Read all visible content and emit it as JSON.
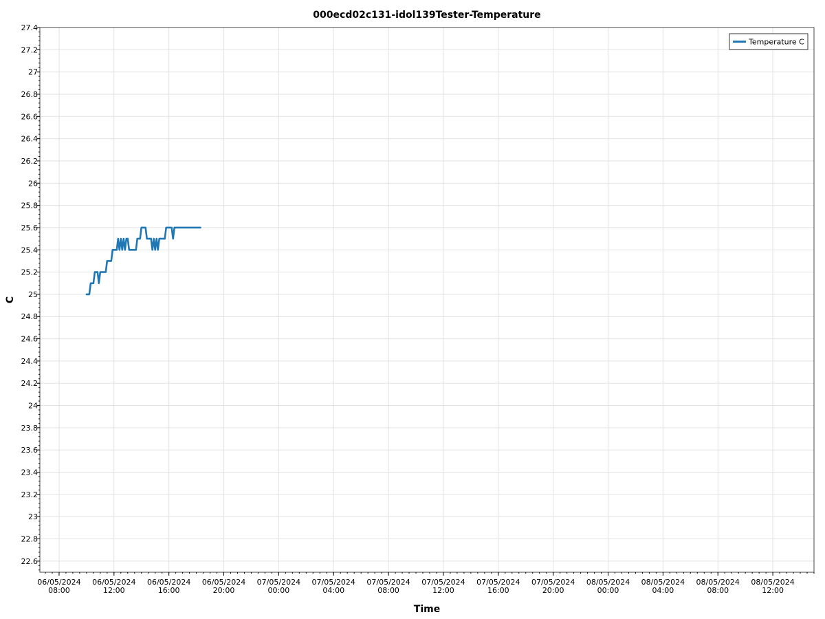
{
  "chart_data": {
    "type": "line",
    "title": "000ecd02c131-idol139Tester-Temperature",
    "xlabel": "Time",
    "ylabel": "C",
    "xlim": [
      "2024-05-06 06:36",
      "2024-05-08 15:00"
    ],
    "ylim": [
      22.5,
      27.4
    ],
    "y_ticks": [
      22.6,
      22.8,
      23,
      23.2,
      23.4,
      23.6,
      23.8,
      24,
      24.2,
      24.4,
      24.6,
      24.8,
      25,
      25.2,
      25.4,
      25.6,
      25.8,
      26,
      26.2,
      26.4,
      26.6,
      26.8,
      27,
      27.2,
      27.4
    ],
    "x_ticks": [
      {
        "date": "06/05/2024",
        "time": "08:00",
        "t": "2024-05-06 08:00"
      },
      {
        "date": "06/05/2024",
        "time": "12:00",
        "t": "2024-05-06 12:00"
      },
      {
        "date": "06/05/2024",
        "time": "16:00",
        "t": "2024-05-06 16:00"
      },
      {
        "date": "06/05/2024",
        "time": "20:00",
        "t": "2024-05-06 20:00"
      },
      {
        "date": "07/05/2024",
        "time": "00:00",
        "t": "2024-05-07 00:00"
      },
      {
        "date": "07/05/2024",
        "time": "04:00",
        "t": "2024-05-07 04:00"
      },
      {
        "date": "07/05/2024",
        "time": "08:00",
        "t": "2024-05-07 08:00"
      },
      {
        "date": "07/05/2024",
        "time": "12:00",
        "t": "2024-05-07 12:00"
      },
      {
        "date": "07/05/2024",
        "time": "16:00",
        "t": "2024-05-07 16:00"
      },
      {
        "date": "07/05/2024",
        "time": "20:00",
        "t": "2024-05-07 20:00"
      },
      {
        "date": "08/05/2024",
        "time": "00:00",
        "t": "2024-05-08 00:00"
      },
      {
        "date": "08/05/2024",
        "time": "04:00",
        "t": "2024-05-08 04:00"
      },
      {
        "date": "08/05/2024",
        "time": "08:00",
        "t": "2024-05-08 08:00"
      },
      {
        "date": "08/05/2024",
        "time": "12:00",
        "t": "2024-05-08 12:00"
      }
    ],
    "grid": true,
    "legend_position": "top-right",
    "series": [
      {
        "name": "Temperature C",
        "color": "#1f77b4",
        "points": [
          [
            "2024-05-06 10:00",
            25.0
          ],
          [
            "2024-05-06 10:12",
            25.0
          ],
          [
            "2024-05-06 10:18",
            25.1
          ],
          [
            "2024-05-06 10:30",
            25.1
          ],
          [
            "2024-05-06 10:36",
            25.2
          ],
          [
            "2024-05-06 10:48",
            25.2
          ],
          [
            "2024-05-06 10:54",
            25.1
          ],
          [
            "2024-05-06 11:00",
            25.2
          ],
          [
            "2024-05-06 11:24",
            25.2
          ],
          [
            "2024-05-06 11:30",
            25.3
          ],
          [
            "2024-05-06 11:48",
            25.3
          ],
          [
            "2024-05-06 11:54",
            25.4
          ],
          [
            "2024-05-06 12:12",
            25.4
          ],
          [
            "2024-05-06 12:18",
            25.5
          ],
          [
            "2024-05-06 12:24",
            25.4
          ],
          [
            "2024-05-06 12:30",
            25.5
          ],
          [
            "2024-05-06 12:36",
            25.4
          ],
          [
            "2024-05-06 12:42",
            25.5
          ],
          [
            "2024-05-06 12:48",
            25.4
          ],
          [
            "2024-05-06 12:54",
            25.5
          ],
          [
            "2024-05-06 13:00",
            25.5
          ],
          [
            "2024-05-06 13:06",
            25.4
          ],
          [
            "2024-05-06 13:36",
            25.4
          ],
          [
            "2024-05-06 13:42",
            25.5
          ],
          [
            "2024-05-06 13:54",
            25.5
          ],
          [
            "2024-05-06 14:00",
            25.6
          ],
          [
            "2024-05-06 14:18",
            25.6
          ],
          [
            "2024-05-06 14:24",
            25.5
          ],
          [
            "2024-05-06 14:42",
            25.5
          ],
          [
            "2024-05-06 14:48",
            25.4
          ],
          [
            "2024-05-06 14:54",
            25.5
          ],
          [
            "2024-05-06 15:00",
            25.4
          ],
          [
            "2024-05-06 15:06",
            25.5
          ],
          [
            "2024-05-06 15:12",
            25.4
          ],
          [
            "2024-05-06 15:18",
            25.5
          ],
          [
            "2024-05-06 15:36",
            25.5
          ],
          [
            "2024-05-06 15:42",
            25.5
          ],
          [
            "2024-05-06 15:48",
            25.6
          ],
          [
            "2024-05-06 15:54",
            25.6
          ],
          [
            "2024-05-06 16:00",
            25.6
          ],
          [
            "2024-05-06 16:06",
            25.6
          ],
          [
            "2024-05-06 16:12",
            25.6
          ],
          [
            "2024-05-06 16:18",
            25.5
          ],
          [
            "2024-05-06 16:24",
            25.6
          ],
          [
            "2024-05-06 16:30",
            25.6
          ],
          [
            "2024-05-06 16:36",
            25.6
          ],
          [
            "2024-05-06 16:42",
            25.6
          ],
          [
            "2024-05-06 16:48",
            25.6
          ],
          [
            "2024-05-06 16:54",
            25.6
          ],
          [
            "2024-05-06 17:00",
            25.6
          ],
          [
            "2024-05-06 17:06",
            25.6
          ],
          [
            "2024-05-06 17:12",
            25.6
          ],
          [
            "2024-05-06 17:18",
            25.6
          ],
          [
            "2024-05-06 17:24",
            25.6
          ],
          [
            "2024-05-06 17:30",
            25.6
          ],
          [
            "2024-05-06 17:36",
            25.6
          ],
          [
            "2024-05-06 17:42",
            25.6
          ],
          [
            "2024-05-06 17:48",
            25.6
          ],
          [
            "2024-05-06 17:54",
            25.6
          ],
          [
            "2024-05-06 18:00",
            25.6
          ],
          [
            "2024-05-06 18:06",
            25.6
          ],
          [
            "2024-05-06 18:12",
            25.6
          ],
          [
            "2024-05-06 18:18",
            25.6
          ]
        ]
      }
    ]
  }
}
